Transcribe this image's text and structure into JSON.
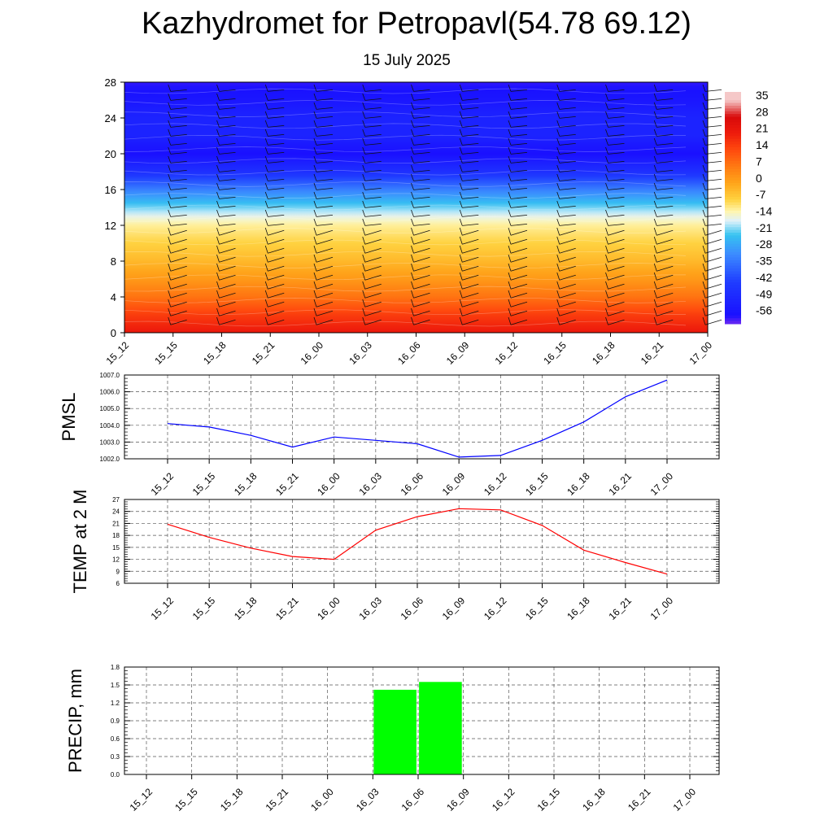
{
  "header": {
    "title": "Kazhydromet for Petropavl(54.78 69.12)",
    "subtitle": "15 July 2025"
  },
  "chart_data": [
    {
      "type": "heatmap",
      "description_kind": "temperature cross-section with wind barbs",
      "x": [
        "15_12",
        "15_15",
        "15_18",
        "15_21",
        "16_00",
        "16_03",
        "16_06",
        "16_09",
        "16_12",
        "16_15",
        "16_18",
        "16_21",
        "17_00"
      ],
      "y_ticks": [
        0,
        4,
        8,
        12,
        16,
        20,
        24,
        28
      ],
      "ylim": [
        0,
        28
      ],
      "colorbar_labels": [
        "35",
        "28",
        "21",
        "14",
        "7",
        "0",
        "-7",
        "-14",
        "-21",
        "-28",
        "-35",
        "-42",
        "-49",
        "-56"
      ],
      "colorbar_range": [
        -60,
        38
      ],
      "color_stops": [
        {
          "value": -60,
          "color": "#7b2cf0"
        },
        {
          "value": -56,
          "color": "#1a10ff"
        },
        {
          "value": -42,
          "color": "#1f3cff"
        },
        {
          "value": -30,
          "color": "#3c8cff"
        },
        {
          "value": -22,
          "color": "#35c3f0"
        },
        {
          "value": -16,
          "color": "#dff1fb"
        },
        {
          "value": -12,
          "color": "#fff6b0"
        },
        {
          "value": -7,
          "color": "#ffd240"
        },
        {
          "value": 0,
          "color": "#ffa51a"
        },
        {
          "value": 7,
          "color": "#ff7a12"
        },
        {
          "value": 14,
          "color": "#ff4a0e"
        },
        {
          "value": 21,
          "color": "#ee1c0c"
        },
        {
          "value": 28,
          "color": "#d80a0a"
        },
        {
          "value": 35,
          "color": "#f5c8c8"
        }
      ],
      "profile": [
        {
          "level": 0,
          "temp": 22
        },
        {
          "level": 2,
          "temp": 16
        },
        {
          "level": 4,
          "temp": 8
        },
        {
          "level": 6,
          "temp": 2
        },
        {
          "level": 8,
          "temp": -3
        },
        {
          "level": 10,
          "temp": -7
        },
        {
          "level": 12,
          "temp": -11
        },
        {
          "level": 13,
          "temp": -15
        },
        {
          "level": 14,
          "temp": -20
        },
        {
          "level": 15,
          "temp": -26
        },
        {
          "level": 16,
          "temp": -32
        },
        {
          "level": 18,
          "temp": -46
        },
        {
          "level": 20,
          "temp": -56
        },
        {
          "level": 22,
          "temp": -50
        },
        {
          "level": 24,
          "temp": -50
        },
        {
          "level": 26,
          "temp": -54
        },
        {
          "level": 28,
          "temp": -57
        }
      ]
    },
    {
      "type": "line",
      "ylabel": "PMSL",
      "x": [
        "15_12",
        "15_15",
        "15_18",
        "15_21",
        "16_00",
        "16_03",
        "16_06",
        "16_09",
        "16_12",
        "16_15",
        "16_18",
        "16_21",
        "17_00"
      ],
      "values": [
        1004.1,
        1003.9,
        1003.4,
        1002.7,
        1003.3,
        1003.1,
        1002.9,
        1002.1,
        1002.2,
        1003.1,
        1004.2,
        1005.7,
        1006.7
      ],
      "ylim": [
        1002.0,
        1007.0
      ],
      "y_ticks": [
        "1002.0",
        "1003.0",
        "1004.0",
        "1005.0",
        "1006.0",
        "1007.0"
      ],
      "color": "#0000ff",
      "grid": true
    },
    {
      "type": "line",
      "ylabel": "TEMP at 2 M",
      "x": [
        "15_12",
        "15_15",
        "15_18",
        "15_21",
        "16_00",
        "16_03",
        "16_06",
        "16_09",
        "16_12",
        "16_15",
        "16_18",
        "16_21",
        "17_00"
      ],
      "values": [
        20.8,
        17.5,
        14.8,
        12.7,
        12.0,
        19.3,
        22.7,
        24.7,
        24.4,
        20.5,
        14.3,
        11.2,
        8.3
      ],
      "ylim": [
        6,
        27
      ],
      "y_ticks": [
        "6",
        "9",
        "12",
        "15",
        "18",
        "21",
        "24",
        "27"
      ],
      "color": "#ff0000",
      "grid": true
    },
    {
      "type": "bar",
      "ylabel": "PRECIP, mm",
      "categories": [
        "15_12",
        "15_15",
        "15_18",
        "15_21",
        "16_00",
        "16_03",
        "16_06",
        "16_09",
        "16_12",
        "16_15",
        "16_18",
        "16_21",
        "17_00"
      ],
      "values": [
        0,
        0,
        0,
        0,
        0,
        0,
        1.42,
        1.55,
        0,
        0,
        0,
        0,
        0
      ],
      "ylim": [
        0,
        1.8
      ],
      "y_ticks": [
        "0.0",
        "0.3",
        "0.6",
        "0.9",
        "1.2",
        "1.5",
        "1.8"
      ],
      "color": "#00ff00",
      "grid": true
    }
  ]
}
